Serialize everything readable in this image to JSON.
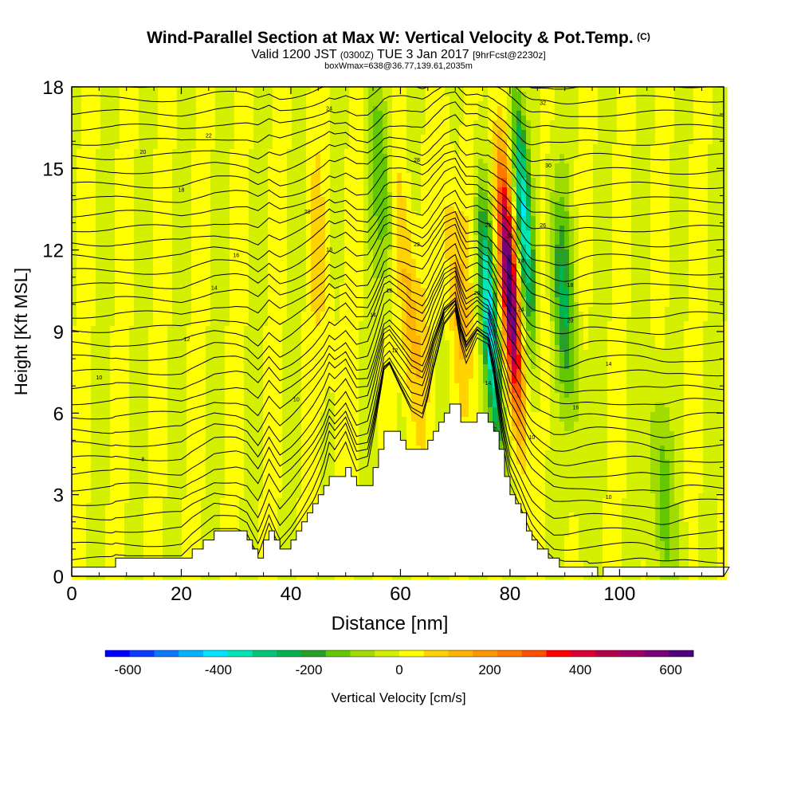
{
  "title": {
    "main": "Wind-Parallel Section at Max W: Vertical Velocity & Pot.Temp.",
    "copyright": "(C)",
    "valid_prefix": "Valid 1200 JST",
    "valid_utc": "(0300Z)",
    "valid_date": "TUE 3 Jan 2017",
    "fcst": "[9hrFcst@2230z]",
    "box": "boxWmax=638@36.77,139.61,2035m"
  },
  "chart_data": {
    "type": "heatmap",
    "xlabel": "Distance [nm]",
    "ylabel": "Height [Kft MSL]",
    "xlim": [
      0,
      119
    ],
    "ylim": [
      0,
      18
    ],
    "x_ticks": [
      0,
      20,
      40,
      60,
      80,
      100
    ],
    "y_ticks": [
      0,
      3,
      6,
      9,
      12,
      15,
      18
    ],
    "colorbar": {
      "label": "Vertical Velocity [cm/s]",
      "range": [
        -650,
        650
      ],
      "ticks": [
        -600,
        -400,
        -200,
        0,
        200,
        400,
        600
      ],
      "colors": [
        "#0000ff",
        "#0a3cff",
        "#0a78ff",
        "#00b4ff",
        "#00e6ff",
        "#00e6b4",
        "#00c878",
        "#00b450",
        "#28a028",
        "#64c800",
        "#a0dc00",
        "#d2f000",
        "#ffff00",
        "#ffd200",
        "#ffb400",
        "#ff9600",
        "#ff7800",
        "#ff5000",
        "#ff0000",
        "#dc0032",
        "#b4004b",
        "#a00064",
        "#780078",
        "#500078"
      ]
    },
    "terrain_profile": {
      "x_nm": [
        0,
        6,
        8,
        14,
        20,
        22,
        26,
        28,
        30,
        32,
        34,
        36,
        38,
        40,
        42,
        44,
        46,
        47,
        48,
        50,
        52,
        54,
        56,
        57,
        58,
        60,
        62,
        64,
        65,
        66,
        68,
        70,
        71,
        72,
        74,
        76,
        77,
        78,
        79,
        80,
        82,
        84,
        86,
        88,
        90,
        94,
        96,
        98,
        119
      ],
      "height_kft": [
        0.3,
        0.3,
        0.6,
        0.6,
        0.6,
        1.0,
        1.6,
        1.6,
        1.6,
        1.4,
        0.6,
        1.8,
        0.9,
        1.4,
        2.0,
        2.6,
        3.3,
        3.8,
        3.6,
        4.0,
        3.3,
        3.4,
        4.7,
        5.3,
        5.4,
        5.0,
        4.6,
        4.5,
        4.9,
        5.4,
        6.1,
        6.3,
        5.8,
        5.5,
        5.9,
        5.8,
        5.3,
        4.5,
        3.7,
        2.9,
        2.2,
        1.4,
        0.9,
        0.5,
        0.4,
        0.4,
        0.1,
        0.3,
        0.3
      ]
    },
    "w_features": [
      {
        "x": 80.0,
        "z": 10.5,
        "w": 638
      },
      {
        "x": 76.5,
        "z": 9.0,
        "w": -420
      },
      {
        "x": 82.5,
        "z": 13.5,
        "w": -350
      },
      {
        "x": 90.0,
        "z": 10.0,
        "w": -200
      },
      {
        "x": 61.5,
        "z": 10.0,
        "w": 170
      },
      {
        "x": 70.0,
        "z": 11.0,
        "w": 130
      },
      {
        "x": 57.0,
        "z": 14.0,
        "w": -150
      },
      {
        "x": 108.0,
        "z": 3.0,
        "w": -140
      },
      {
        "x": 46.0,
        "z": 11.0,
        "w": 60
      }
    ],
    "theta_contour_labels": [
      {
        "x": 13,
        "z": 15.6,
        "text": "20"
      },
      {
        "x": 20,
        "z": 14.2,
        "text": "18"
      },
      {
        "x": 25,
        "z": 16.2,
        "text": "22"
      },
      {
        "x": 47,
        "z": 17.2,
        "text": "24"
      },
      {
        "x": 30,
        "z": 11.8,
        "text": "16"
      },
      {
        "x": 26,
        "z": 10.6,
        "text": "14"
      },
      {
        "x": 21,
        "z": 8.7,
        "text": "12"
      },
      {
        "x": 5,
        "z": 7.3,
        "text": "10"
      },
      {
        "x": 41,
        "z": 6.5,
        "text": "10"
      },
      {
        "x": 13,
        "z": 4.3,
        "text": "8"
      },
      {
        "x": 43,
        "z": 13.4,
        "text": "20"
      },
      {
        "x": 47,
        "z": 12.0,
        "text": "18"
      },
      {
        "x": 55,
        "z": 9.6,
        "text": "14"
      },
      {
        "x": 58,
        "z": 10.5,
        "text": "16"
      },
      {
        "x": 59,
        "z": 8.3,
        "text": "12"
      },
      {
        "x": 63,
        "z": 12.2,
        "text": "22"
      },
      {
        "x": 63,
        "z": 15.3,
        "text": "28"
      },
      {
        "x": 76,
        "z": 12.9,
        "text": "26"
      },
      {
        "x": 74,
        "z": 10.4,
        "text": "20"
      },
      {
        "x": 80,
        "z": 12.5,
        "text": "30"
      },
      {
        "x": 80,
        "z": 11.0,
        "text": "27"
      },
      {
        "x": 82,
        "z": 11.6,
        "text": "24"
      },
      {
        "x": 82,
        "z": 9.8,
        "text": "24"
      },
      {
        "x": 76,
        "z": 7.1,
        "text": "14"
      },
      {
        "x": 77,
        "z": 5.4,
        "text": "12"
      },
      {
        "x": 86,
        "z": 17.4,
        "text": "32"
      },
      {
        "x": 87,
        "z": 15.1,
        "text": "30"
      },
      {
        "x": 86,
        "z": 12.9,
        "text": "26"
      },
      {
        "x": 91,
        "z": 10.7,
        "text": "18"
      },
      {
        "x": 91,
        "z": 9.4,
        "text": "20"
      },
      {
        "x": 98,
        "z": 7.8,
        "text": "14"
      },
      {
        "x": 92,
        "z": 6.2,
        "text": "16"
      },
      {
        "x": 84,
        "z": 5.1,
        "text": "10"
      },
      {
        "x": 98,
        "z": 2.9,
        "text": "10"
      }
    ]
  }
}
